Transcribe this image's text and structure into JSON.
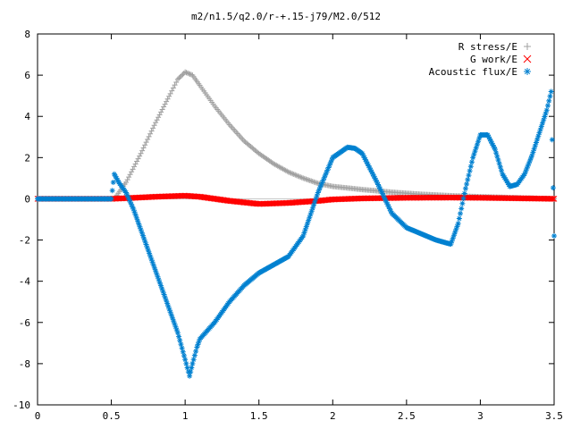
{
  "chart_data": {
    "type": "scatter",
    "title": "m2/n1.5/q2.0/r-+.15-j79/M2.0/512",
    "xlabel": "",
    "ylabel": "",
    "xlim": [
      0,
      3.5
    ],
    "ylim": [
      -10,
      8
    ],
    "grid": false,
    "legend_position": "top-right",
    "x_ticks": [
      "0",
      "0.5",
      "1",
      "1.5",
      "2",
      "2.5",
      "3",
      "3.5"
    ],
    "y_ticks": [
      "-10",
      "-8",
      "-6",
      "-4",
      "-2",
      "0",
      "2",
      "4",
      "6",
      "8"
    ],
    "series": [
      {
        "name": "R stress/E",
        "marker": "plus",
        "color": "#a0a0a0",
        "x": [
          0.52,
          0.6,
          0.7,
          0.8,
          0.9,
          0.95,
          1.0,
          1.05,
          1.1,
          1.2,
          1.3,
          1.4,
          1.5,
          1.6,
          1.7,
          1.8,
          1.9,
          2.0,
          2.2,
          2.4,
          2.6,
          2.8,
          3.0,
          3.2,
          3.5
        ],
        "y": [
          0.0,
          0.8,
          2.2,
          3.7,
          5.1,
          5.8,
          6.15,
          6.0,
          5.5,
          4.5,
          3.6,
          2.8,
          2.2,
          1.7,
          1.3,
          1.0,
          0.75,
          0.6,
          0.45,
          0.32,
          0.22,
          0.15,
          0.1,
          0.06,
          0.0
        ]
      },
      {
        "name": "G work/E",
        "marker": "x",
        "color": "#ff0000",
        "x": [
          0.0,
          0.5,
          0.6,
          0.8,
          1.0,
          1.1,
          1.3,
          1.5,
          1.7,
          1.9,
          2.0,
          2.2,
          2.5,
          2.8,
          3.0,
          3.2,
          3.5
        ],
        "y": [
          0.0,
          0.0,
          0.03,
          0.1,
          0.15,
          0.1,
          -0.1,
          -0.25,
          -0.2,
          -0.1,
          -0.03,
          0.02,
          0.05,
          0.06,
          0.05,
          0.03,
          0.0
        ]
      },
      {
        "name": "Acoustic flux/E",
        "marker": "star",
        "color": "#0080d0",
        "x": [
          0.0,
          0.5,
          0.52,
          0.55,
          0.6,
          0.65,
          0.7,
          0.75,
          0.8,
          0.85,
          0.9,
          0.95,
          1.0,
          1.03,
          1.05,
          1.08,
          1.1,
          1.2,
          1.3,
          1.4,
          1.5,
          1.6,
          1.7,
          1.8,
          1.9,
          2.0,
          2.1,
          2.15,
          2.2,
          2.3,
          2.4,
          2.5,
          2.6,
          2.7,
          2.8,
          2.85,
          2.9,
          2.95,
          3.0,
          3.05,
          3.1,
          3.15,
          3.2,
          3.25,
          3.3,
          3.35,
          3.4,
          3.45,
          3.48,
          3.5
        ],
        "y": [
          0.0,
          0.0,
          1.2,
          0.8,
          0.3,
          -0.5,
          -1.5,
          -2.5,
          -3.5,
          -4.5,
          -5.5,
          -6.5,
          -7.8,
          -8.6,
          -8.0,
          -7.2,
          -6.8,
          -6.0,
          -5.0,
          -4.2,
          -3.6,
          -3.2,
          -2.8,
          -1.8,
          0.3,
          2.0,
          2.5,
          2.45,
          2.2,
          0.8,
          -0.7,
          -1.4,
          -1.7,
          -2.0,
          -2.2,
          -1.2,
          0.5,
          2.0,
          3.1,
          3.1,
          2.4,
          1.2,
          0.6,
          0.7,
          1.2,
          2.1,
          3.2,
          4.3,
          5.2,
          -1.8
        ]
      }
    ]
  }
}
